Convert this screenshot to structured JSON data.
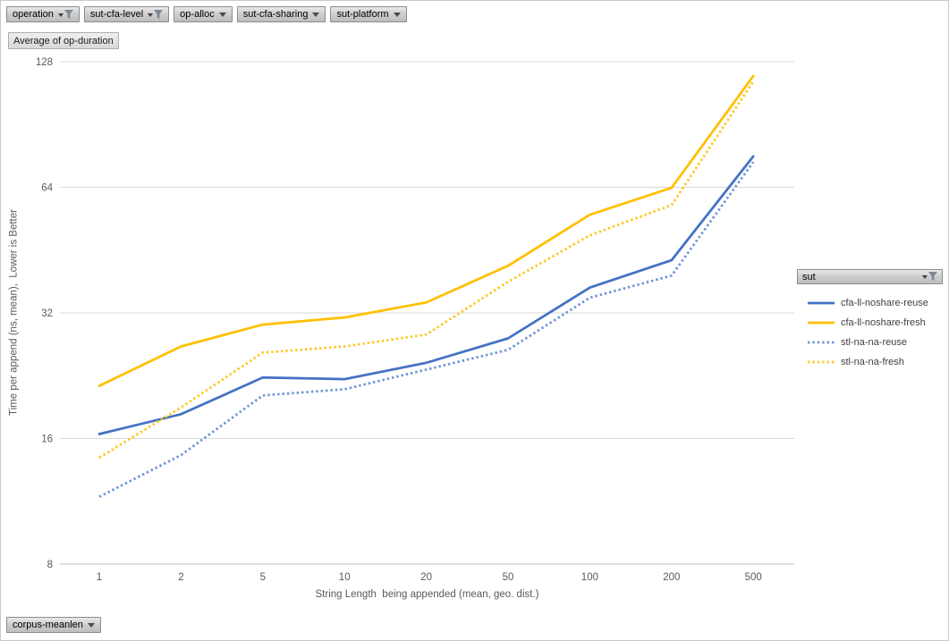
{
  "pivot_fields": {
    "top_buttons": [
      {
        "label": "operation",
        "filtered": true
      },
      {
        "label": "sut-cfa-level",
        "filtered": true
      },
      {
        "label": "op-alloc",
        "filtered": false
      },
      {
        "label": "sut-cfa-sharing",
        "filtered": false
      },
      {
        "label": "sut-platform",
        "filtered": false
      }
    ],
    "value_button_label": "Average of op-duration",
    "axis_button_label": "corpus-meanlen",
    "legend_button_label": "sut",
    "legend_button_filtered": true
  },
  "chart_data": {
    "type": "line",
    "title": "Average of op-duration",
    "x_categories": [
      "1",
      "2",
      "5",
      "10",
      "20",
      "50",
      "100",
      "200",
      "500"
    ],
    "xlabel": "String Length  being appended (mean, geo. dist.)",
    "ylabel": "Time per append (ns, mean),  Lower is Better",
    "y_scale": "log2",
    "y_ticks": [
      8,
      16,
      32,
      64,
      128
    ],
    "ylim": [
      8,
      128
    ],
    "grid": "horizontal-only",
    "legend_title": "sut",
    "legend_position": "right",
    "colors": {
      "accent_blue": "#4472C4",
      "accent_yellow": "#FFC000",
      "tint_blue_dotted": "#6D94D4",
      "tint_yellow_dotted": "#FFC61E",
      "gridline": "#D9D9D9",
      "axis_line": "#BFBFBF",
      "axis_text": "#595959"
    },
    "series": [
      {
        "name": "cfa-ll-noshare-reuse",
        "color": "#4472C4",
        "dash": "solid",
        "values": [
          16.4,
          18.3,
          22.4,
          22.2,
          24.3,
          27.8,
          36.8,
          42.8,
          75.9
        ]
      },
      {
        "name": "cfa-ll-noshare-fresh",
        "color": "#FFC000",
        "dash": "solid",
        "values": [
          21.4,
          26.6,
          30.0,
          31.2,
          33.9,
          41.5,
          55.0,
          63.8,
          118.2
        ]
      },
      {
        "name": "stl-na-na-reuse",
        "color": "#6D94D4",
        "dash": "dotted",
        "values": [
          11.6,
          14.6,
          20.3,
          21.0,
          23.4,
          26.1,
          34.8,
          39.3,
          73.6
        ]
      },
      {
        "name": "stl-na-na-fresh",
        "color": "#FFC61E",
        "dash": "dotted",
        "values": [
          14.4,
          19.0,
          25.7,
          26.6,
          28.4,
          38.0,
          49.1,
          58.0,
          114.7
        ]
      }
    ]
  }
}
